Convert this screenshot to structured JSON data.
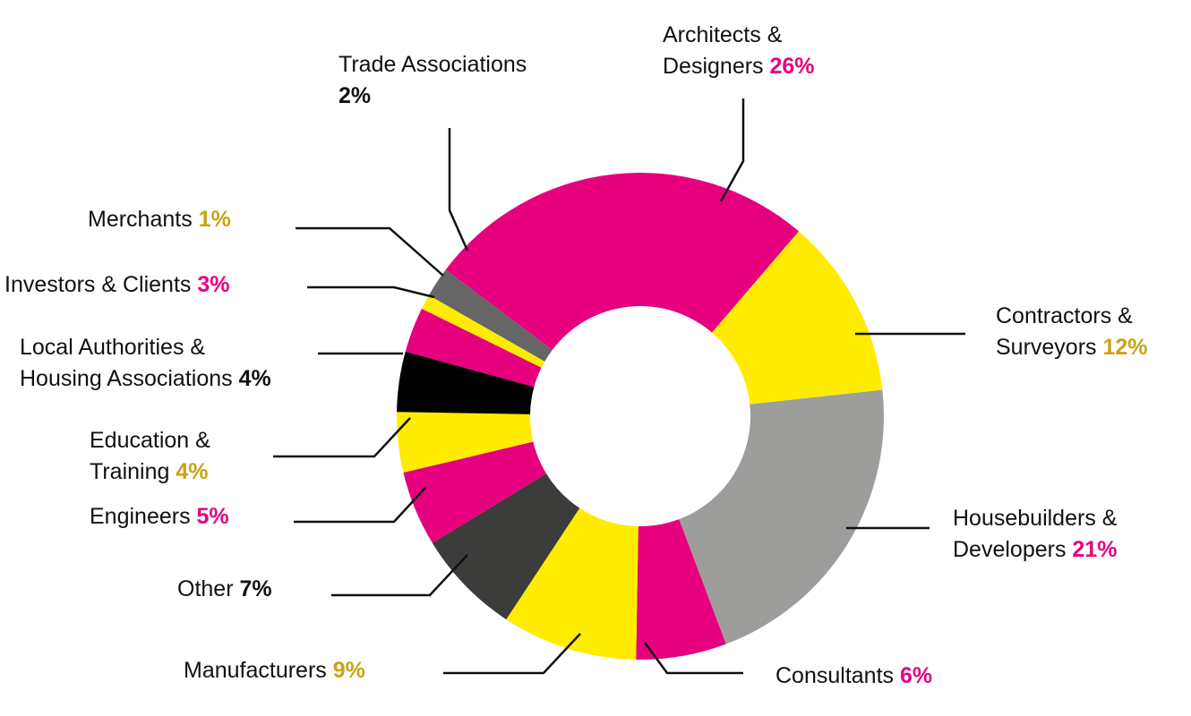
{
  "chart_data": {
    "type": "pie",
    "style": "donut",
    "title": "",
    "slices": [
      {
        "label": "Architects & Designers",
        "label_lines": [
          "Architects &",
          "Designers"
        ],
        "value": 26,
        "value_text": "26%",
        "color": "#e6007e",
        "pct_color": "#e6007e"
      },
      {
        "label": "Contractors & Surveyors",
        "label_lines": [
          "Contractors &",
          "Surveyors"
        ],
        "value": 12,
        "value_text": "12%",
        "color": "#ffec00",
        "pct_color": "#c8a314"
      },
      {
        "label": "Housebuilders & Developers",
        "label_lines": [
          "Housebuilders &",
          "Developers"
        ],
        "value": 21,
        "value_text": "21%",
        "color": "#9d9d9c",
        "pct_color": "#e6007e"
      },
      {
        "label": "Consultants",
        "label_lines": [
          "Consultants"
        ],
        "value": 6,
        "value_text": "6%",
        "color": "#e6007e",
        "pct_color": "#e6007e"
      },
      {
        "label": "Manufacturers",
        "label_lines": [
          "Manufacturers"
        ],
        "value": 9,
        "value_text": "9%",
        "color": "#ffec00",
        "pct_color": "#c8a314"
      },
      {
        "label": "Other",
        "label_lines": [
          "Other"
        ],
        "value": 7,
        "value_text": "7%",
        "color": "#3c3c3b",
        "pct_color": "#111111"
      },
      {
        "label": "Engineers",
        "label_lines": [
          "Engineers"
        ],
        "value": 5,
        "value_text": "5%",
        "color": "#e6007e",
        "pct_color": "#e6007e"
      },
      {
        "label": "Education & Training",
        "label_lines": [
          "Education &",
          "Training"
        ],
        "value": 4,
        "value_text": "4%",
        "color": "#ffec00",
        "pct_color": "#c8a314"
      },
      {
        "label": "Local Authorities & Housing Associations",
        "label_lines": [
          "Local Authorities &",
          "Housing Associations"
        ],
        "value": 4,
        "value_text": "4%",
        "color": "#000000",
        "pct_color": "#111111"
      },
      {
        "label": "Investors & Clients",
        "label_lines": [
          "Investors & Clients"
        ],
        "value": 3,
        "value_text": "3%",
        "color": "#e6007e",
        "pct_color": "#e6007e"
      },
      {
        "label": "Merchants",
        "label_lines": [
          "Merchants"
        ],
        "value": 1,
        "value_text": "1%",
        "color": "#ffec00",
        "pct_color": "#c8a314"
      },
      {
        "label": "Trade Associations",
        "label_lines": [
          "Trade Associations"
        ],
        "value": 2,
        "value_text": "2%",
        "color": "#666666",
        "pct_color": "#111111"
      }
    ]
  }
}
